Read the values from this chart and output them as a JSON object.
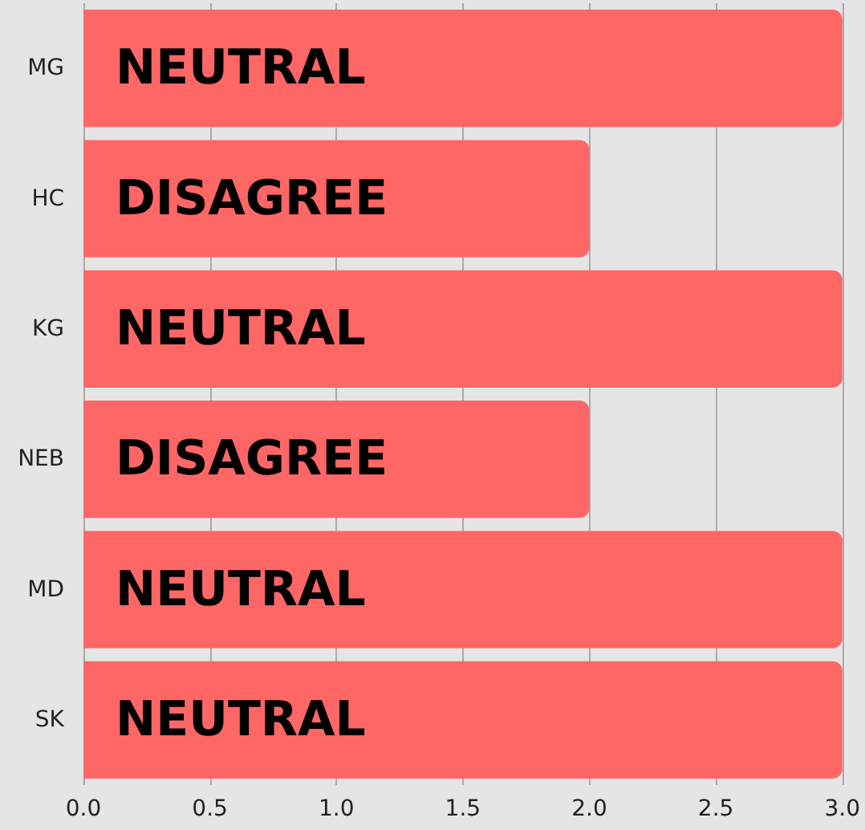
{
  "chart_data": {
    "type": "bar",
    "orientation": "horizontal",
    "categories": [
      "MG",
      "HC",
      "KG",
      "NEB",
      "MD",
      "SK"
    ],
    "values": [
      3,
      2,
      3,
      2,
      3,
      3
    ],
    "value_labels": [
      "NEUTRAL",
      "DISAGREE",
      "NEUTRAL",
      "DISAGREE",
      "NEUTRAL",
      "NEUTRAL"
    ],
    "color": "#ff6666",
    "xlim": [
      0,
      3
    ],
    "xticks": [
      {
        "value": 0,
        "label": "0.0"
      },
      {
        "value": 0.5,
        "label": "0.5"
      },
      {
        "value": 1,
        "label": "1.0"
      },
      {
        "value": 1.5,
        "label": "1.5"
      },
      {
        "value": 2,
        "label": "2.0"
      },
      {
        "value": 2.5,
        "label": "2.5"
      },
      {
        "value": 3,
        "label": "3.0"
      }
    ],
    "grid": "x"
  }
}
